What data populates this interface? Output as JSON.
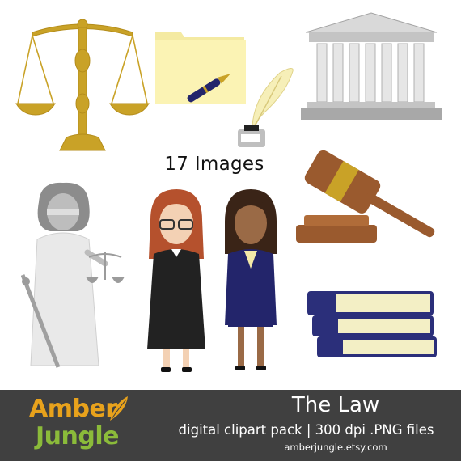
{
  "image_count_label": "17 Images",
  "brand": {
    "line1": "Amber",
    "line2": "Jungle"
  },
  "footer": {
    "title": "The Law",
    "subtitle": "digital clipart pack  |  300 dpi .PNG files",
    "website": "amberjungle.etsy.com"
  },
  "colors": {
    "banner": "#404040",
    "brand_orange": "#e8a21c",
    "brand_green": "#8bbb3a",
    "gold": "#c9a227",
    "navy": "#23256b",
    "wood": "#9a5a2e",
    "folder": "#fbf3b4"
  },
  "icons": [
    "scales-of-justice-icon",
    "folder-icon",
    "fountain-pen-icon",
    "quill-inkwell-icon",
    "courthouse-icon",
    "gavel-icon",
    "lady-justice-icon",
    "judge-woman-icon",
    "lawyer-woman-icon",
    "law-books-icon"
  ]
}
